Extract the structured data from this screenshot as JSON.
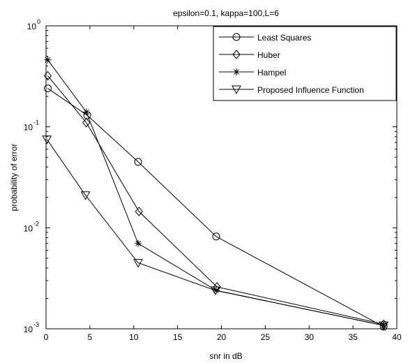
{
  "chart_data": {
    "type": "line",
    "title": "epsilon=0.1, kappa=100,L=6",
    "xlabel": "snr in dB",
    "ylabel": "probability of error",
    "xlim": [
      0,
      40
    ],
    "ylim": [
      0.001,
      1
    ],
    "yscale": "log",
    "grid": false,
    "legend_position": "top-right",
    "x_ticks": [
      "0",
      "5",
      "10",
      "15",
      "20",
      "25",
      "30",
      "35",
      "40"
    ],
    "y_ticks": [
      {
        "base": "10",
        "exp": "0",
        "value": 1
      },
      {
        "base": "10",
        "exp": "-1",
        "value": 0.1
      },
      {
        "base": "10",
        "exp": "-2",
        "value": 0.01
      },
      {
        "base": "10",
        "exp": "-3",
        "value": 0.001
      }
    ],
    "series": [
      {
        "name": "Least Squares",
        "marker": "circle",
        "x": [
          0.2,
          4.7,
          10.5,
          19.4,
          38.5
        ],
        "y": [
          0.24,
          0.13,
          0.045,
          0.0082,
          0.00105
        ]
      },
      {
        "name": "Huber",
        "marker": "diamond",
        "x": [
          0.2,
          4.6,
          10.6,
          19.5,
          38.5
        ],
        "y": [
          0.32,
          0.11,
          0.0145,
          0.0026,
          0.00111
        ]
      },
      {
        "name": "Hampel",
        "marker": "star",
        "x": [
          0.2,
          4.6,
          10.5,
          19.4,
          38.5
        ],
        "y": [
          0.46,
          0.14,
          0.007,
          0.0024,
          0.00108
        ]
      },
      {
        "name": "Proposed Influence Function",
        "marker": "triangle-down",
        "x": [
          0.1,
          4.5,
          10.5,
          19.3,
          38.5
        ],
        "y": [
          0.075,
          0.021,
          0.0045,
          0.0024,
          0.00108
        ]
      }
    ]
  }
}
